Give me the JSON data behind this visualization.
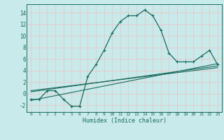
{
  "title": "",
  "xlabel": "Humidex (Indice chaleur)",
  "bg_color": "#c8eaea",
  "grid_color": "#e8c8c8",
  "line_color": "#1a6b5e",
  "xlim": [
    -0.5,
    23.5
  ],
  "ylim": [
    -3.2,
    15.5
  ],
  "xticks": [
    0,
    1,
    2,
    3,
    4,
    5,
    6,
    7,
    8,
    9,
    10,
    11,
    12,
    13,
    14,
    15,
    16,
    17,
    18,
    19,
    20,
    21,
    22,
    23
  ],
  "yticks": [
    -2,
    0,
    2,
    4,
    6,
    8,
    10,
    12,
    14
  ],
  "main_x": [
    0,
    1,
    2,
    3,
    4,
    5,
    6,
    7,
    8,
    9,
    10,
    11,
    12,
    13,
    14,
    15,
    16,
    17,
    18,
    19,
    20,
    21,
    22,
    23
  ],
  "main_y": [
    -1.0,
    -1.0,
    0.5,
    0.5,
    -1.0,
    -2.2,
    -2.2,
    3.0,
    5.0,
    7.5,
    10.5,
    12.5,
    13.5,
    13.5,
    14.5,
    13.5,
    11.0,
    7.0,
    5.5,
    5.5,
    5.5,
    6.5,
    7.5,
    5.0
  ],
  "line1_x": [
    0,
    23
  ],
  "line1_y": [
    -1.2,
    5.2
  ],
  "line2_x": [
    0,
    23
  ],
  "line2_y": [
    0.5,
    4.5
  ],
  "line3_x": [
    0,
    23
  ],
  "line3_y": [
    0.3,
    4.8
  ]
}
